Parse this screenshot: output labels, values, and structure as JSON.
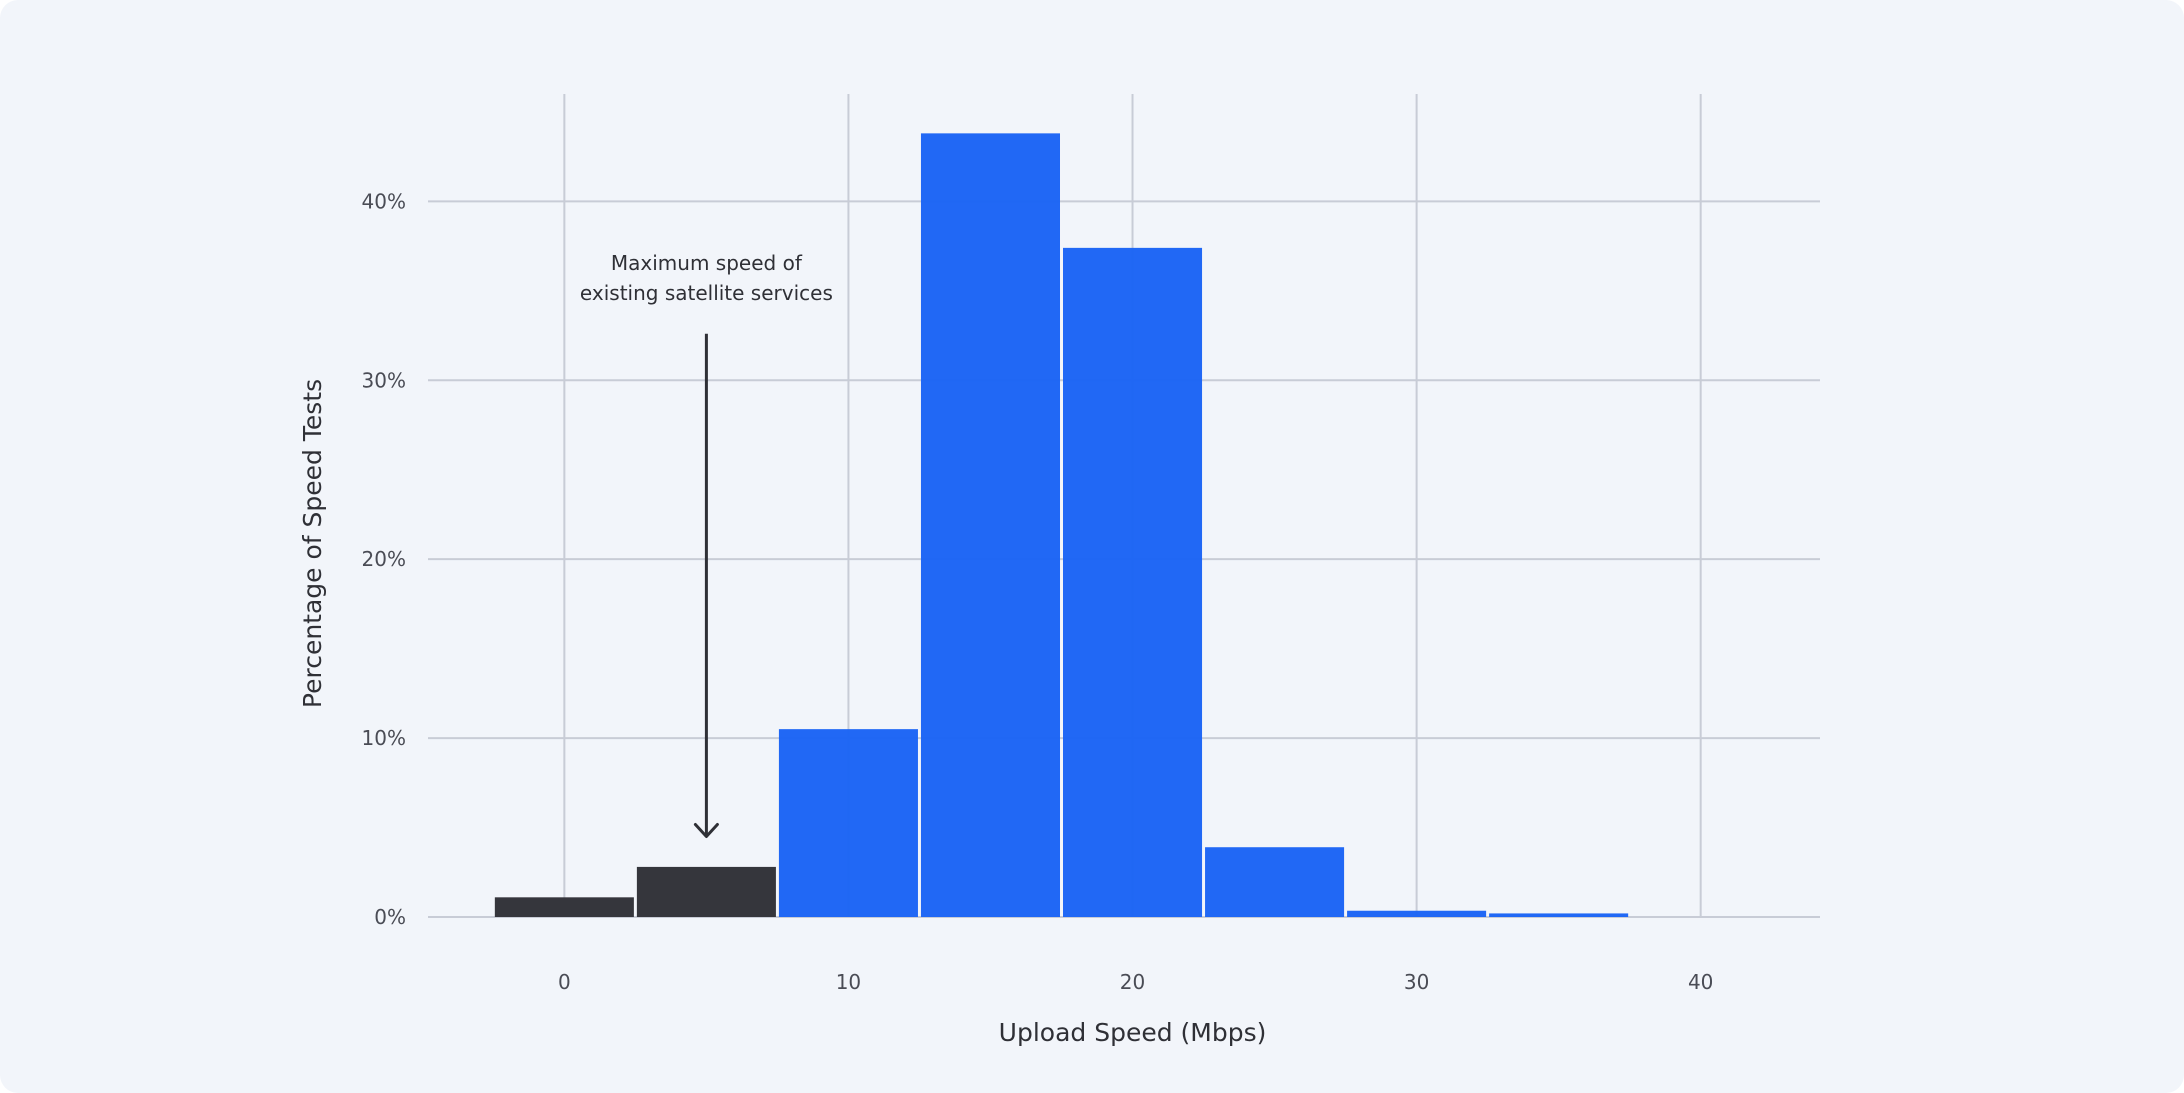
{
  "chart_data": {
    "type": "bar",
    "xlabel": "Upload Speed (Mbps)",
    "ylabel": "Percentage of Speed Tests",
    "xlim": [
      -4.8,
      44.2
    ],
    "ylim": [
      0,
      46
    ],
    "x_ticks": [
      0,
      10,
      20,
      30,
      40
    ],
    "y_ticks": [
      0,
      10,
      20,
      30,
      40
    ],
    "y_tick_suffix": "%",
    "grid": true,
    "bin_width": 5,
    "bins": [
      {
        "start": -2.5,
        "end": 2.5,
        "value": 1.1,
        "group": "existing"
      },
      {
        "start": 2.5,
        "end": 7.5,
        "value": 2.8,
        "group": "existing"
      },
      {
        "start": 7.5,
        "end": 12.5,
        "value": 10.5,
        "group": "starlink"
      },
      {
        "start": 12.5,
        "end": 17.5,
        "value": 43.8,
        "group": "starlink"
      },
      {
        "start": 17.5,
        "end": 22.5,
        "value": 37.4,
        "group": "starlink"
      },
      {
        "start": 22.5,
        "end": 27.5,
        "value": 3.9,
        "group": "starlink"
      },
      {
        "start": 27.5,
        "end": 32.5,
        "value": 0.35,
        "group": "starlink"
      },
      {
        "start": 32.5,
        "end": 37.5,
        "value": 0.2,
        "group": "starlink"
      }
    ],
    "colors": {
      "existing": "#35363c",
      "starlink": "#1a63f5",
      "grid": "#c8ccd6",
      "background": "#f2f5fa"
    },
    "annotation": {
      "lines": [
        "Maximum speed of",
        "existing satellite services"
      ],
      "arrow_x": 5,
      "arrow_from_y": 32.6,
      "arrow_to_y": 4.5
    }
  }
}
